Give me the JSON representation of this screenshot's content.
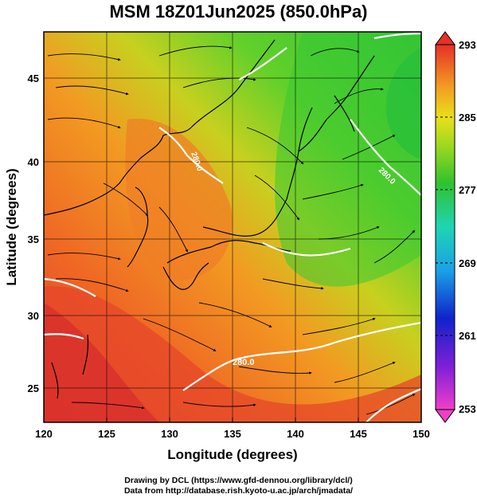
{
  "title": "MSM 18Z01Jun2025 (850.0hPa)",
  "x_axis": {
    "label": "Longitude (degrees)",
    "ticks": [
      "120",
      "125",
      "130",
      "135",
      "140",
      "145",
      "150"
    ]
  },
  "y_axis": {
    "label": "Latitude  (degrees)",
    "ticks": [
      "25",
      "30",
      "35",
      "40",
      "45"
    ]
  },
  "colorbar": {
    "ticks": [
      "293",
      "285",
      "277",
      "269",
      "261",
      "253"
    ],
    "unit_min": 253,
    "unit_max": 293
  },
  "contour_labels": [
    "280.0",
    "280.0",
    "280.0"
  ],
  "credits": {
    "line1": "Drawing by DCL (https://www.gfd-dennou.org/library/dcl/)",
    "line2": "Data from http://database.rish.kyoto-u.ac.jp/arch/jmadata/"
  },
  "colors": {
    "warm": "#e5332a",
    "mid": "#f29a1e",
    "cool": "#26c62c",
    "contour": "#ffffff"
  }
}
